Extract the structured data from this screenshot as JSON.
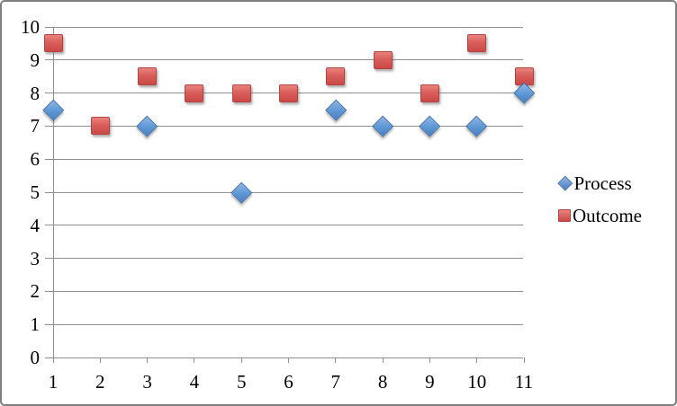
{
  "chart_data": {
    "type": "scatter",
    "title": "",
    "xlabel": "",
    "ylabel": "",
    "x": [
      1,
      2,
      3,
      4,
      5,
      6,
      7,
      8,
      9,
      10,
      11
    ],
    "x_tick_labels": [
      "1",
      "2",
      "3",
      "4",
      "5",
      "6",
      "7",
      "8",
      "9",
      "10",
      "11"
    ],
    "y_tick_labels": [
      "0",
      "1",
      "2",
      "3",
      "4",
      "5",
      "6",
      "7",
      "8",
      "9",
      "10"
    ],
    "ylim": [
      0,
      10
    ],
    "y_tick_step": 1,
    "grid": "horizontal",
    "legend_position": "right",
    "series": [
      {
        "name": "Process",
        "marker": "diamond",
        "color": "#4F81BD",
        "values": [
          7.5,
          null,
          7,
          null,
          5,
          null,
          7.5,
          7,
          7,
          7,
          8
        ]
      },
      {
        "name": "Outcome",
        "marker": "square",
        "color": "#C0504D",
        "values": [
          9.5,
          7,
          8.5,
          8,
          8,
          8,
          8.5,
          9,
          8,
          9.5,
          8.5
        ]
      }
    ]
  },
  "colors": {
    "process_fill": "#5D97D5",
    "process_border": "#3E6EA8",
    "outcome_fill": "#D95E5B",
    "outcome_border": "#B24341",
    "gridline": "#8F8F8F",
    "frame_border": "#7F7F7F",
    "background": "#FFFFFF",
    "text": "#000000"
  }
}
